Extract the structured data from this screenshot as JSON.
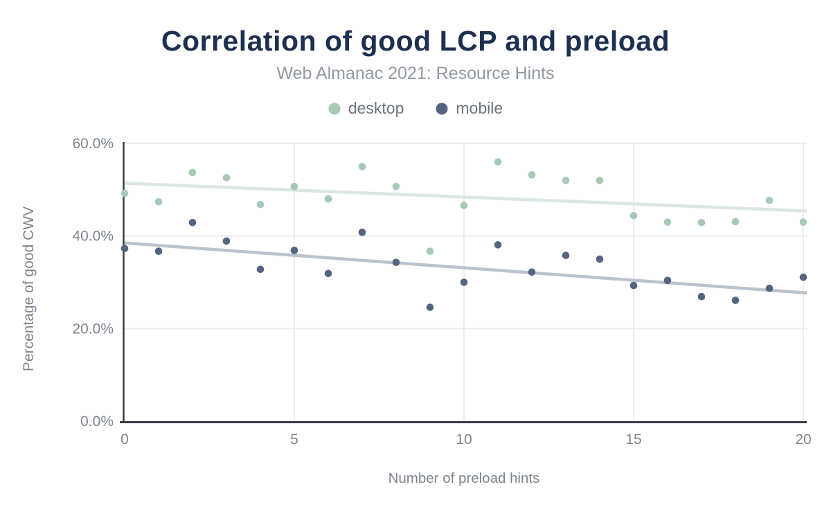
{
  "chart_data": {
    "type": "scatter",
    "title": "Correlation of good LCP and preload",
    "subtitle": "Web Almanac 2021: Resource Hints",
    "xlabel": "Number of preload hints",
    "ylabel": "Percentage of good CWV",
    "xlim": [
      0,
      20
    ],
    "ylim": [
      0,
      60
    ],
    "grid": true,
    "legend_position": "top",
    "x": [
      0,
      1,
      2,
      3,
      4,
      5,
      6,
      7,
      8,
      9,
      10,
      11,
      12,
      13,
      14,
      15,
      16,
      17,
      18,
      19,
      20
    ],
    "xticks": [
      {
        "v": 0,
        "label": "0"
      },
      {
        "v": 5,
        "label": "5"
      },
      {
        "v": 10,
        "label": "10"
      },
      {
        "v": 15,
        "label": "15"
      },
      {
        "v": 20,
        "label": "20"
      }
    ],
    "yticks": [
      {
        "v": 0,
        "label": "0.0%"
      },
      {
        "v": 20,
        "label": "20.0%"
      },
      {
        "v": 40,
        "label": "40.0%"
      },
      {
        "v": 60,
        "label": "60.0%"
      }
    ],
    "series": [
      {
        "name": "desktop",
        "color": "#a7c9b5",
        "trend_color": "#dbe7df",
        "values": [
          49.2,
          47.4,
          53.7,
          52.6,
          46.8,
          50.7,
          48.0,
          55.0,
          50.7,
          36.7,
          46.6,
          56.0,
          53.2,
          52.0,
          52.0,
          44.4,
          43.0,
          42.9,
          43.1,
          47.7,
          43.0
        ],
        "trendline": {
          "start_y": 51.4,
          "end_y": 45.4
        }
      },
      {
        "name": "mobile",
        "color": "#53657f",
        "trend_color": "#bac3cd",
        "values": [
          37.3,
          36.7,
          42.9,
          38.9,
          32.8,
          36.9,
          31.9,
          40.8,
          34.3,
          24.6,
          30.0,
          38.1,
          32.2,
          35.8,
          35.0,
          29.3,
          30.4,
          26.9,
          26.1,
          28.7,
          31.1
        ],
        "trendline": {
          "start_y": 38.5,
          "end_y": 27.7
        }
      }
    ]
  },
  "colors": {
    "background": "#ffffff",
    "title": "#1d3050",
    "subtitle": "#9199a2",
    "legend_label": "#6d747c",
    "axis_line": "#363c45",
    "grid_line": "#ededf0",
    "tick_label": "#7d848e",
    "axis_title": "#7d848e"
  }
}
